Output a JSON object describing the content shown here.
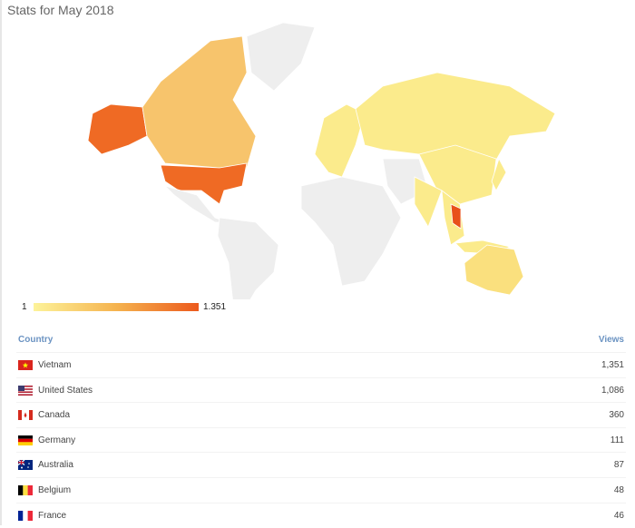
{
  "header": {
    "title": "Stats for May 2018"
  },
  "legend": {
    "min": "1",
    "max": "1.351"
  },
  "table": {
    "columns": [
      "Country",
      "Views"
    ],
    "rows": [
      [
        "Vietnam",
        "1,351"
      ],
      [
        "United States",
        "1,086"
      ],
      [
        "Canada",
        "360"
      ],
      [
        "Germany",
        "111"
      ],
      [
        "Australia",
        "87"
      ],
      [
        "Belgium",
        "48"
      ],
      [
        "France",
        "46"
      ]
    ]
  }
}
